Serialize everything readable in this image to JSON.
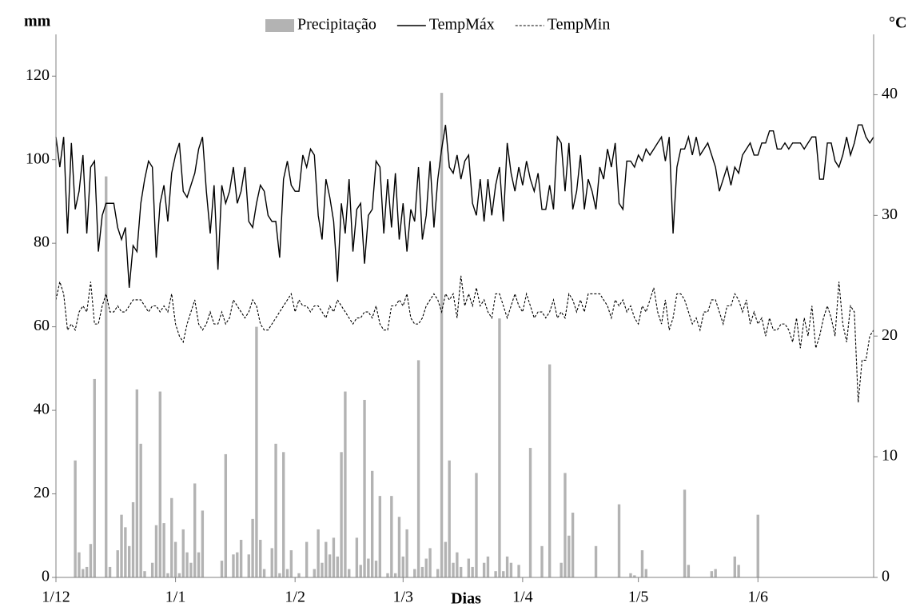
{
  "chart_data": {
    "type": "combo",
    "ylabel": "mm",
    "y2label": "°C",
    "xlabel": "Dias",
    "xlim": [
      0,
      212
    ],
    "xticks": [
      {
        "value": 0,
        "label": "1/12"
      },
      {
        "value": 31,
        "label": "1/1"
      },
      {
        "value": 62,
        "label": "1/2"
      },
      {
        "value": 90,
        "label": "1/3"
      },
      {
        "value": 121,
        "label": "1/4"
      },
      {
        "value": 151,
        "label": "1/5"
      },
      {
        "value": 182,
        "label": "1/6"
      }
    ],
    "ylim": [
      0,
      130
    ],
    "yticks": [
      0,
      20,
      40,
      60,
      80,
      100,
      120
    ],
    "y2lim": [
      0,
      45
    ],
    "y2ticks": [
      0,
      10,
      20,
      30,
      40
    ],
    "legend": "top",
    "series": [
      {
        "name": "Precipitação",
        "type": "bar",
        "color": "#b3b3b3",
        "x": [
          5,
          6,
          7,
          8,
          9,
          10,
          13,
          14,
          16,
          17,
          18,
          19,
          20,
          21,
          22,
          23,
          25,
          26,
          27,
          28,
          29,
          30,
          31,
          32,
          33,
          34,
          35,
          36,
          37,
          38,
          43,
          44,
          46,
          47,
          48,
          50,
          51,
          52,
          53,
          54,
          56,
          57,
          58,
          59,
          60,
          61,
          63,
          65,
          67,
          68,
          69,
          70,
          71,
          72,
          73,
          74,
          75,
          76,
          78,
          79,
          80,
          81,
          82,
          83,
          84,
          86,
          87,
          88,
          89,
          90,
          91,
          93,
          94,
          95,
          96,
          97,
          99,
          100,
          101,
          102,
          103,
          104,
          105,
          107,
          108,
          109,
          111,
          112,
          114,
          115,
          116,
          117,
          118,
          120,
          123,
          126,
          128,
          131,
          132,
          133,
          134,
          140,
          146,
          149,
          150,
          152,
          153,
          163,
          164,
          170,
          171,
          176,
          177,
          182
        ],
        "values": [
          28,
          6,
          2,
          2.5,
          8,
          47.5,
          96,
          2.5,
          6.5,
          15,
          12,
          7.5,
          18,
          45,
          32,
          1.5,
          3.5,
          12.5,
          44.5,
          13,
          1,
          19,
          8.5,
          1,
          11.5,
          6,
          3.5,
          22.5,
          6,
          16,
          4,
          29.5,
          5.5,
          6,
          9,
          5.5,
          14,
          60,
          9,
          2,
          7,
          32,
          1,
          30,
          2,
          6.5,
          1,
          8.5,
          2,
          11.5,
          3.5,
          8.5,
          5.5,
          9.5,
          5,
          30,
          44.5,
          2,
          9.5,
          3,
          42.5,
          4.5,
          25.5,
          4,
          19.5,
          1,
          19.5,
          1,
          14.5,
          5,
          11.5,
          2,
          52,
          2.5,
          4.5,
          7,
          2,
          116,
          8.5,
          28,
          3.5,
          6,
          2.5,
          4.5,
          2.5,
          25,
          3.5,
          5,
          1.5,
          62,
          1.5,
          5,
          3.5,
          3,
          31,
          7.5,
          51,
          3.5,
          25,
          10,
          15.5,
          7.5,
          17.5,
          1,
          0.5,
          6.5,
          2,
          21,
          3,
          1.5,
          2,
          5,
          3,
          15
        ]
      },
      {
        "name": "TempMáx",
        "type": "line",
        "axis": "y2",
        "color": "#000000",
        "linestyle": "solid",
        "values": [
          36.5,
          34,
          36.5,
          28.5,
          36,
          30.5,
          32,
          35,
          28.5,
          34,
          34.5,
          27,
          30,
          31,
          31,
          31,
          29,
          28,
          29,
          24,
          27.5,
          27,
          31,
          33,
          34.5,
          34,
          26.5,
          31,
          32.5,
          29.5,
          33.5,
          35,
          36,
          32,
          31.5,
          32.5,
          33.5,
          35.5,
          36.5,
          32,
          28.5,
          32.5,
          25.5,
          32.5,
          31,
          32,
          34,
          31,
          32,
          34,
          29.5,
          29,
          31,
          32.5,
          32,
          30,
          29.5,
          29.5,
          26.5,
          33,
          34.5,
          32.5,
          32,
          32,
          35,
          34,
          35.5,
          35,
          30,
          28,
          33,
          31.5,
          29.5,
          24.5,
          31,
          28.5,
          33,
          27,
          30.5,
          31,
          26,
          30,
          30.5,
          34.5,
          34,
          28.5,
          33,
          29,
          33.5,
          28,
          31,
          27,
          30.5,
          29.5,
          34,
          28,
          30,
          34.5,
          29,
          33,
          35.5,
          37.5,
          34,
          33.5,
          35,
          33,
          34.5,
          35,
          31,
          30,
          33,
          29.5,
          33,
          30,
          32.5,
          34,
          29.5,
          36,
          33.5,
          32,
          34,
          32.5,
          34.5,
          33,
          32,
          33.5,
          30.5,
          30.5,
          32.5,
          30.5,
          36.5,
          36,
          32,
          36,
          30.5,
          32,
          35,
          30.5,
          33,
          32,
          30.5,
          34,
          33,
          35.5,
          34,
          36,
          31,
          30.5,
          34.5,
          34.5,
          34,
          35,
          34.5,
          35.5,
          35,
          35.5,
          36,
          36.5,
          34.5,
          36.5,
          28.5,
          34,
          35.5,
          35.5,
          36.5,
          35,
          36.5,
          35,
          35.5,
          36,
          35,
          34,
          32,
          33,
          34,
          32.5,
          34,
          33.5,
          35,
          35.5,
          36,
          35,
          35,
          36,
          36,
          37,
          37,
          35.5,
          35.5,
          36,
          35.5,
          36,
          36,
          36,
          35.5,
          36,
          36.5,
          36.5,
          33,
          33,
          36,
          36,
          34.5,
          34,
          35,
          36.5,
          35,
          36,
          37.5,
          37.5,
          36.5,
          36,
          36.5
        ]
      },
      {
        "name": "TempMin",
        "type": "line",
        "axis": "y2",
        "color": "#000000",
        "linestyle": "dashed",
        "values": [
          23,
          24.5,
          23.5,
          20.5,
          21,
          20.5,
          22,
          22.5,
          22,
          24.5,
          21,
          21,
          22.5,
          23.5,
          22,
          22,
          22.5,
          22,
          22,
          22.5,
          23,
          23,
          23,
          22.5,
          22,
          22.5,
          22.5,
          22,
          22.5,
          22,
          23.5,
          21,
          20,
          19.5,
          21,
          22,
          23,
          21,
          20.5,
          21,
          22,
          21,
          21,
          22,
          21,
          21.5,
          23,
          22.5,
          22,
          21.5,
          22,
          23,
          22.5,
          21,
          20.5,
          20.5,
          21,
          21.5,
          22,
          22.5,
          23,
          23.5,
          22,
          23,
          22.5,
          22.5,
          22,
          22.5,
          22.5,
          22,
          21.5,
          22.5,
          22,
          23,
          22.5,
          22,
          21.5,
          21,
          21.5,
          21.5,
          22,
          22,
          21.5,
          22.5,
          21,
          20.5,
          20.5,
          22.5,
          22.5,
          23,
          22.5,
          23.5,
          21.5,
          21,
          21,
          21.5,
          22.5,
          23,
          23.5,
          23,
          22,
          23.5,
          23,
          23.5,
          21.5,
          25,
          22.5,
          23.5,
          22.5,
          24,
          22.5,
          23,
          22,
          21.5,
          23.5,
          23.5,
          22.5,
          21.5,
          22.5,
          23.5,
          22.5,
          22,
          23.5,
          22.5,
          21.5,
          22,
          22,
          21.5,
          22,
          23,
          21.5,
          22,
          21.5,
          23.5,
          23,
          22,
          23,
          22,
          23.5,
          23.5,
          23.5,
          23.5,
          23,
          22.5,
          21.5,
          23,
          22.5,
          23,
          22,
          22.5,
          21.5,
          21,
          22.5,
          22,
          23,
          24,
          22,
          21,
          23,
          20.5,
          21.5,
          23.5,
          23.5,
          23,
          22,
          21,
          21.5,
          20.5,
          22,
          22,
          23,
          23,
          22,
          21,
          22.5,
          22.5,
          23.5,
          23,
          22,
          23,
          21,
          22,
          21,
          21.5,
          20,
          21.5,
          20.5,
          20.5,
          21,
          21,
          20.5,
          19.5,
          21.5,
          19,
          21.5,
          20,
          22.5,
          19,
          20,
          21.5,
          22.5,
          21.5,
          20,
          24.5,
          21,
          19.5,
          22.5,
          22,
          14.5,
          18,
          18,
          20,
          20.5
        ]
      }
    ]
  }
}
